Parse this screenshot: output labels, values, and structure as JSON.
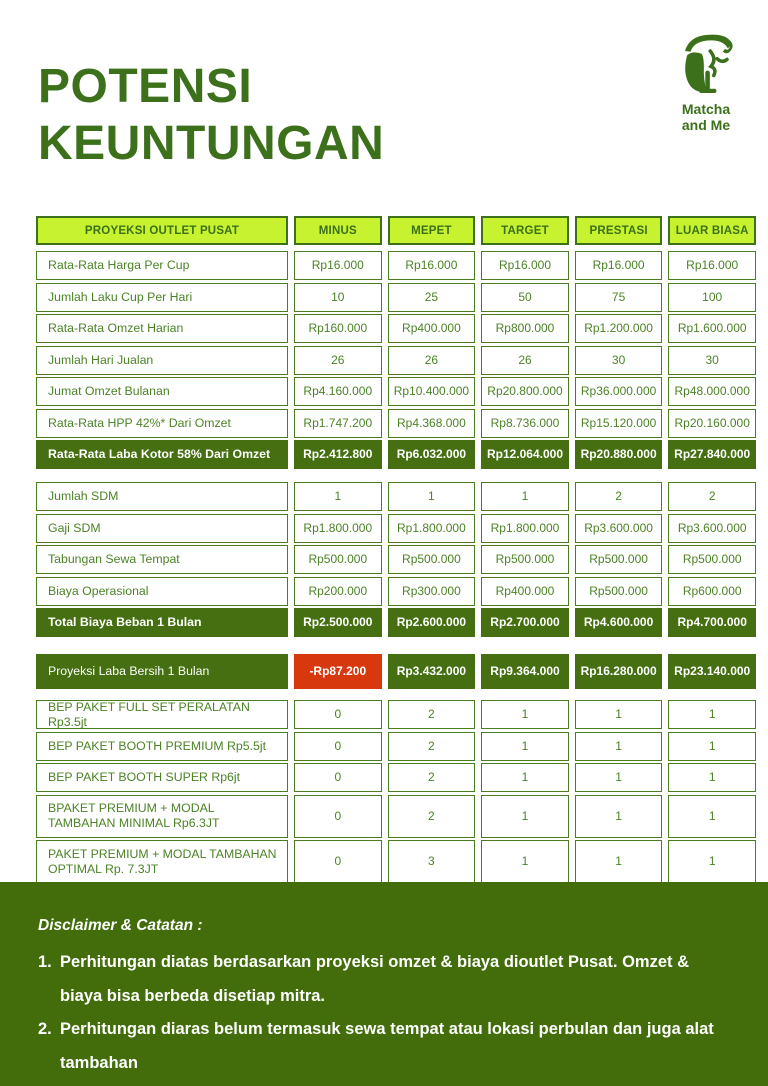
{
  "page": {
    "title_line1": "POTENSI",
    "title_line2": "KEUNTUNGAN"
  },
  "logo": {
    "brand_line1": "Matcha",
    "brand_line2": "and Me",
    "icon": "matcha-and-me-face-logo"
  },
  "colors": {
    "deep_green": "#3c701b",
    "body_green": "#4c8326",
    "border_green": "#4a7d20",
    "header_bg": "#c6f22f",
    "dark_fill": "#456f10",
    "footer_bg": "#426d0a",
    "red": "#d8380e"
  },
  "table": {
    "header": [
      "PROYEKSI OUTLET PUSAT",
      "MINUS",
      "MEPET",
      "TARGET",
      "PRESTASI",
      "LUAR BIASA"
    ],
    "sections": [
      {
        "rows": [
          {
            "label": "Rata-Rata Harga Per Cup",
            "values": [
              "Rp16.000",
              "Rp16.000",
              "Rp16.000",
              "Rp16.000",
              "Rp16.000"
            ],
            "style": "normal"
          },
          {
            "label": "Jumlah Laku Cup Per Hari",
            "values": [
              "10",
              "25",
              "50",
              "75",
              "100"
            ],
            "style": "normal"
          },
          {
            "label": "Rata-Rata Omzet Harian",
            "values": [
              "Rp160.000",
              "Rp400.000",
              "Rp800.000",
              "Rp1.200.000",
              "Rp1.600.000"
            ],
            "style": "normal"
          },
          {
            "label": "Jumlah Hari Jualan",
            "values": [
              "26",
              "26",
              "26",
              "30",
              "30"
            ],
            "style": "normal"
          },
          {
            "label": "Jumat Omzet Bulanan",
            "values": [
              "Rp4.160.000",
              "Rp10.400.000",
              "Rp20.800.000",
              "Rp36.000.000",
              "Rp48.000.000"
            ],
            "style": "normal"
          },
          {
            "label": "Rata-Rata HPP 42%* Dari Omzet",
            "values": [
              "Rp1.747.200",
              "Rp4.368.000",
              "Rp8.736.000",
              "Rp15.120.000",
              "Rp20.160.000"
            ],
            "style": "normal"
          },
          {
            "label": "Rata-Rata Laba Kotor 58% Dari Omzet",
            "values": [
              "Rp2.412.800",
              "Rp6.032.000",
              "Rp12.064.000",
              "Rp20.880.000",
              "Rp27.840.000"
            ],
            "style": "dark"
          }
        ]
      },
      {
        "rows": [
          {
            "label": "Jumlah SDM",
            "values": [
              "1",
              "1",
              "1",
              "2",
              "2"
            ],
            "style": "normal"
          },
          {
            "label": "Gaji SDM",
            "values": [
              "Rp1.800.000",
              "Rp1.800.000",
              "Rp1.800.000",
              "Rp3.600.000",
              "Rp3.600.000"
            ],
            "style": "normal"
          },
          {
            "label": "Tabungan Sewa Tempat",
            "values": [
              "Rp500.000",
              "Rp500.000",
              "Rp500.000",
              "Rp500.000",
              "Rp500.000"
            ],
            "style": "normal"
          },
          {
            "label": "Biaya Operasional",
            "values": [
              "Rp200.000",
              "Rp300.000",
              "Rp400.000",
              "Rp500.000",
              "Rp600.000"
            ],
            "style": "normal"
          },
          {
            "label": "Total Biaya Beban 1 Bulan",
            "values": [
              "Rp2.500.000",
              "Rp2.600.000",
              "Rp2.700.000",
              "Rp4.600.000",
              "Rp4.700.000"
            ],
            "style": "dark"
          }
        ]
      },
      {
        "rows": [
          {
            "label": "Proyeksi Laba Bersih 1 Bulan",
            "values": [
              "-Rp87.200",
              "Rp3.432.000",
              "Rp9.364.000",
              "Rp16.280.000",
              "Rp23.140.000"
            ],
            "style": "net",
            "value_styles": [
              "red",
              "dark",
              "dark",
              "dark",
              "dark"
            ]
          }
        ]
      },
      {
        "rows": [
          {
            "label": "BEP PAKET FULL SET PERALATAN Rp3.5jt",
            "values": [
              "0",
              "2",
              "1",
              "1",
              "1"
            ],
            "style": "normal"
          },
          {
            "label": "BEP PAKET BOOTH PREMIUM Rp5.5jt",
            "values": [
              "0",
              "2",
              "1",
              "1",
              "1"
            ],
            "style": "normal"
          },
          {
            "label": "BEP PAKET BOOTH SUPER Rp6jt",
            "values": [
              "0",
              "2",
              "1",
              "1",
              "1"
            ],
            "style": "normal"
          },
          {
            "label": "BPAKET PREMIUM + MODAL TAMBAHAN MINIMAL Rp6.3JT",
            "values": [
              "0",
              "2",
              "1",
              "1",
              "1"
            ],
            "style": "normal"
          },
          {
            "label": "PAKET PREMIUM + MODAL TAMBAHAN OPTIMAL Rp. 7.3JT",
            "values": [
              "0",
              "3",
              "1",
              "1",
              "1"
            ],
            "style": "normal"
          }
        ]
      }
    ]
  },
  "footer": {
    "heading": "Disclaimer & Catatan :",
    "items": [
      {
        "num": "1.",
        "text": "Perhitungan diatas berdasarkan proyeksi omzet & biaya dioutlet Pusat. Omzet & biaya bisa berbeda disetiap mitra."
      },
      {
        "num": "2.",
        "text": "Perhitungan diaras belum termasuk sewa tempat atau lokasi perbulan dan juga alat tambahan"
      }
    ]
  }
}
